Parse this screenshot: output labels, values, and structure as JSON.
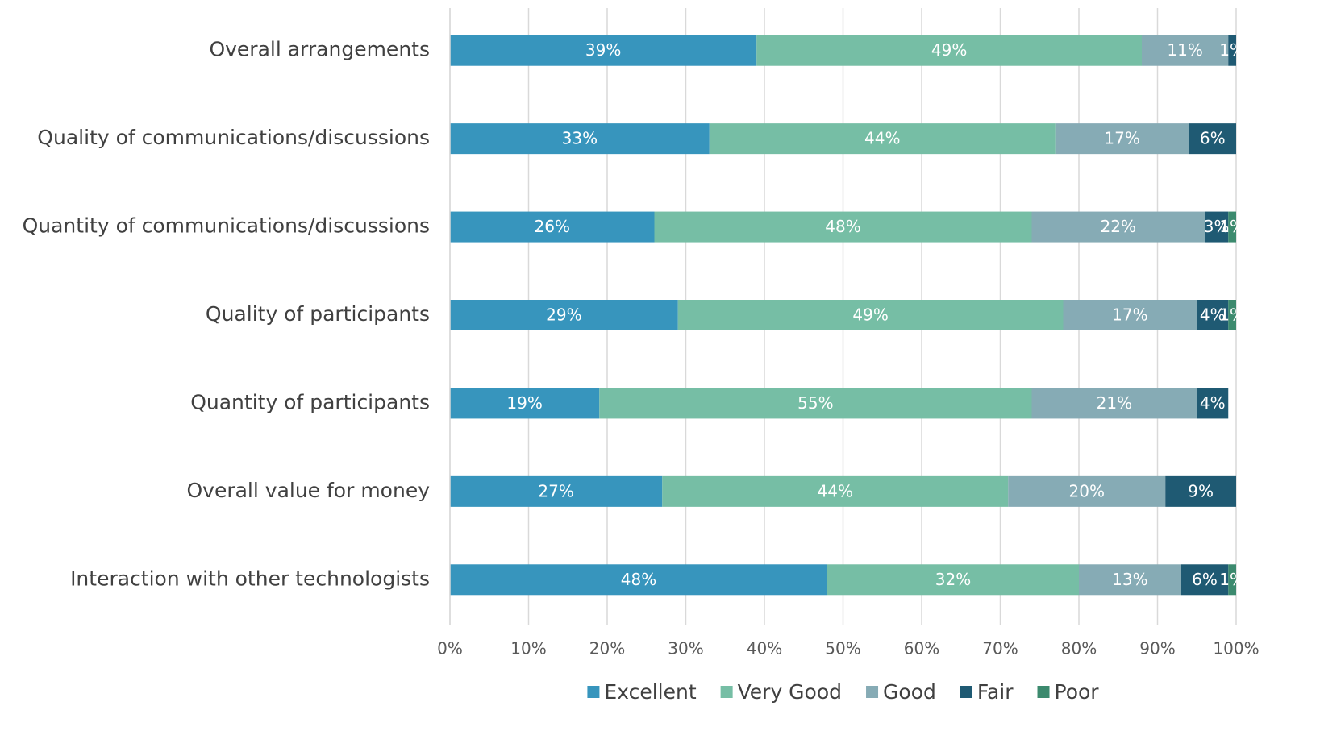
{
  "chart_data": {
    "type": "stacked-bar-horizontal",
    "categories": [
      "Overall arrangements",
      "Quality of communications/discussions",
      "Quantity of communications/discussions",
      "Quality of participants",
      "Quantity of participants",
      "Overall value for money",
      "Interaction with other technologists"
    ],
    "series": [
      {
        "name": "Excellent",
        "color": "#3795bd",
        "values": [
          39,
          33,
          26,
          29,
          19,
          27,
          48
        ],
        "value_labels": [
          "39%",
          "33%",
          "26%",
          "29%",
          "19%",
          "27%",
          "48%"
        ]
      },
      {
        "name": "Very Good",
        "color": "#76bea5",
        "values": [
          49,
          44,
          48,
          49,
          55,
          44,
          32
        ],
        "value_labels": [
          "49%",
          "44%",
          "48%",
          "49%",
          "55%",
          "44%",
          "32%"
        ]
      },
      {
        "name": "Good",
        "color": "#86abb5",
        "values": [
          11,
          17,
          22,
          17,
          21,
          20,
          13
        ],
        "value_labels": [
          "11%",
          "17%",
          "22%",
          "17%",
          "21%",
          "20%",
          "13%"
        ]
      },
      {
        "name": "Fair",
        "color": "#1f5a73",
        "values": [
          1,
          6,
          3,
          4,
          4,
          9,
          6
        ],
        "value_labels": [
          "1%",
          "6%",
          "3%",
          "4%",
          "4%",
          "9%",
          "6%"
        ]
      },
      {
        "name": "Poor",
        "color": "#3c8a6e",
        "values": [
          null,
          null,
          1,
          1,
          null,
          null,
          1
        ],
        "value_labels": [
          null,
          null,
          "1%",
          "1%",
          null,
          null,
          "1%"
        ]
      }
    ],
    "xlim": [
      0,
      100
    ],
    "xticks": [
      {
        "value": 0,
        "label": "0%"
      },
      {
        "value": 10,
        "label": "10%"
      },
      {
        "value": 20,
        "label": "20%"
      },
      {
        "value": 30,
        "label": "30%"
      },
      {
        "value": 40,
        "label": "40%"
      },
      {
        "value": 50,
        "label": "50%"
      },
      {
        "value": 60,
        "label": "60%"
      },
      {
        "value": 70,
        "label": "70%"
      },
      {
        "value": 80,
        "label": "80%"
      },
      {
        "value": 90,
        "label": "90%"
      },
      {
        "value": 100,
        "label": "100%"
      }
    ],
    "grid": true,
    "legend": "bottom"
  }
}
